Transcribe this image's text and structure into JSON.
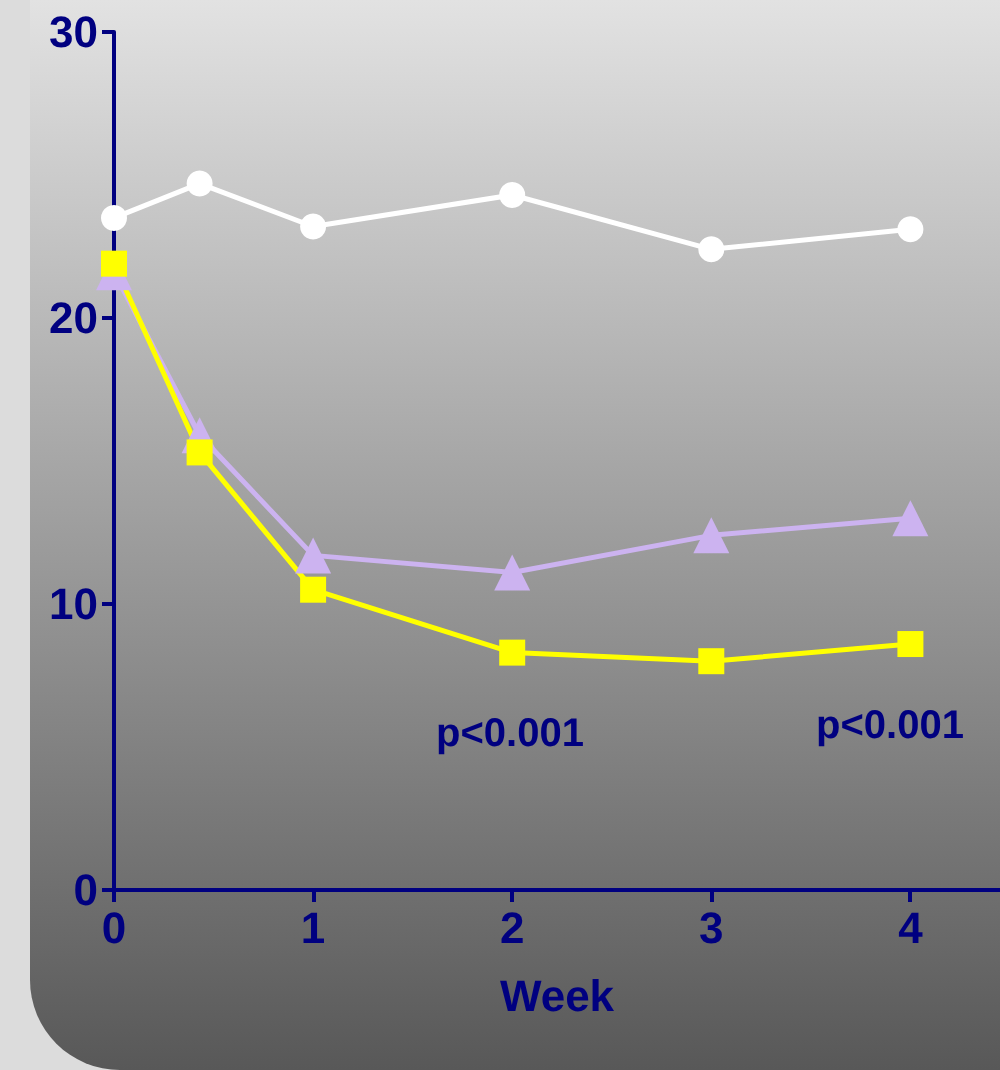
{
  "chart_data": {
    "type": "line",
    "xlabel": "Week",
    "xlim": [
      0,
      4.45
    ],
    "xticks": [
      0,
      1,
      2,
      3,
      4
    ],
    "ylim": [
      0,
      30
    ],
    "yticks": [
      0,
      10,
      20,
      30
    ],
    "grid": false,
    "x": [
      0,
      0.43,
      1,
      2,
      3,
      4
    ],
    "series": [
      {
        "color": "#ffffff",
        "marker": "circle",
        "values": [
          23.5,
          24.7,
          23.2,
          24.3,
          22.4,
          23.1
        ]
      },
      {
        "color": "#ccb3f0",
        "marker": "triangle",
        "values": [
          21.6,
          15.9,
          11.7,
          11.1,
          12.4,
          13.0
        ]
      },
      {
        "color": "#ffff00",
        "marker": "square",
        "values": [
          21.9,
          15.3,
          10.5,
          8.3,
          8.0,
          8.6
        ]
      }
    ],
    "annotations": [
      "p<0.001",
      "p<0.001"
    ]
  }
}
